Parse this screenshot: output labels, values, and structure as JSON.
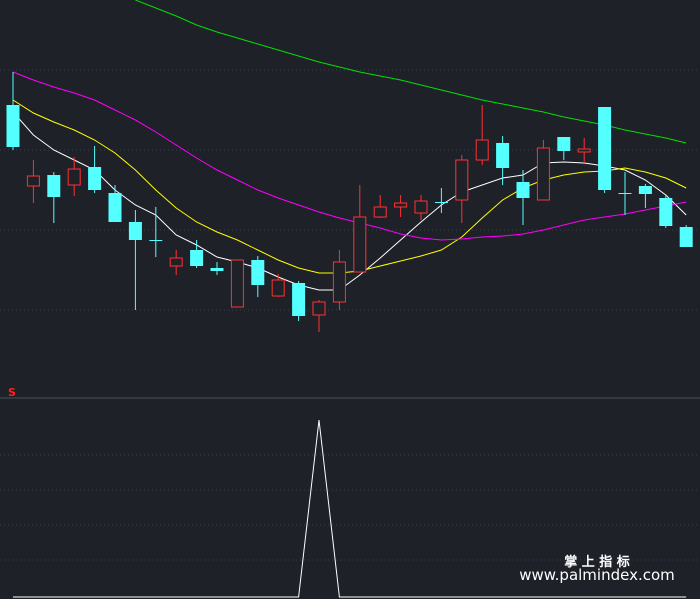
{
  "chart_data": [
    {
      "type": "candlestick",
      "ylim": [
        0,
        400
      ],
      "up_color": "#ff3232",
      "down_color": "#54ffff",
      "open": [
        295,
        214,
        225,
        215,
        233,
        207,
        178,
        160,
        134,
        150,
        132,
        93,
        140,
        104,
        117,
        85,
        98,
        128,
        183,
        193,
        187,
        198,
        200,
        240,
        257,
        218,
        200,
        263,
        248,
        293,
        207,
        214,
        202,
        173
      ],
      "high": [
        328,
        240,
        228,
        243,
        254,
        215,
        190,
        193,
        150,
        160,
        138,
        140,
        144,
        126,
        119,
        100,
        150,
        215,
        205,
        205,
        205,
        212,
        245,
        295,
        264,
        230,
        260,
        263,
        262,
        293,
        228,
        216,
        205,
        175
      ],
      "low": [
        250,
        197,
        177,
        204,
        207,
        178,
        90,
        143,
        125,
        132,
        125,
        93,
        103,
        103,
        79,
        68,
        90,
        128,
        182,
        183,
        180,
        187,
        177,
        235,
        215,
        175,
        200,
        240,
        237,
        207,
        185,
        192,
        172,
        153
      ],
      "close": [
        253,
        224,
        203,
        231,
        210,
        178,
        160,
        160,
        142,
        134,
        129,
        140,
        115,
        120,
        84,
        98,
        138,
        183,
        193,
        197,
        199,
        197,
        240,
        260,
        232,
        202,
        252,
        249,
        251,
        210,
        206,
        206,
        174,
        153
      ],
      "lines": [
        {
          "color": "#ffffff",
          "values": [
            288,
            265,
            250,
            240,
            230,
            210,
            195,
            185,
            165,
            155,
            143,
            138,
            132,
            123,
            115,
            110,
            110,
            125,
            142,
            160,
            178,
            195,
            208,
            215,
            222,
            225,
            237,
            238,
            237,
            234,
            230,
            220,
            205,
            185
          ]
        },
        {
          "color": "#ffff00",
          "values": [
            300,
            287,
            278,
            270,
            260,
            247,
            230,
            210,
            192,
            178,
            168,
            160,
            150,
            140,
            132,
            127,
            127,
            129,
            134,
            139,
            144,
            150,
            163,
            182,
            200,
            212,
            220,
            225,
            228,
            229,
            232,
            228,
            222,
            212
          ]
        },
        {
          "color": "#ff00ff",
          "values": [
            328,
            320,
            313,
            307,
            300,
            290,
            280,
            268,
            255,
            242,
            230,
            220,
            210,
            202,
            195,
            188,
            182,
            177,
            172,
            166,
            162,
            160,
            161,
            163,
            164,
            166,
            170,
            175,
            180,
            183,
            186,
            190,
            194,
            198
          ]
        },
        {
          "color": "#00e000",
          "values": [
            null,
            null,
            null,
            null,
            null,
            null,
            400,
            392,
            384,
            375,
            368,
            362,
            356,
            350,
            344,
            338,
            333,
            328,
            324,
            320,
            315,
            310,
            305,
            300,
            296,
            292,
            288,
            283,
            279,
            275,
            270,
            266,
            262,
            257
          ]
        }
      ]
    },
    {
      "type": "line",
      "title": "S",
      "title_color": "#ff2020",
      "ylim": [
        0,
        197
      ],
      "color": "#ffffff",
      "values": [
        0,
        0,
        0,
        0,
        0,
        0,
        0,
        0,
        0,
        0,
        0,
        0,
        0,
        0,
        0,
        177,
        0,
        0,
        0,
        0,
        0,
        0,
        0,
        0,
        0,
        0,
        0,
        0,
        0,
        0,
        0,
        0,
        0,
        0
      ]
    }
  ],
  "watermark": {
    "title": "掌 上 指 标",
    "url": "www.palmindex.com"
  }
}
